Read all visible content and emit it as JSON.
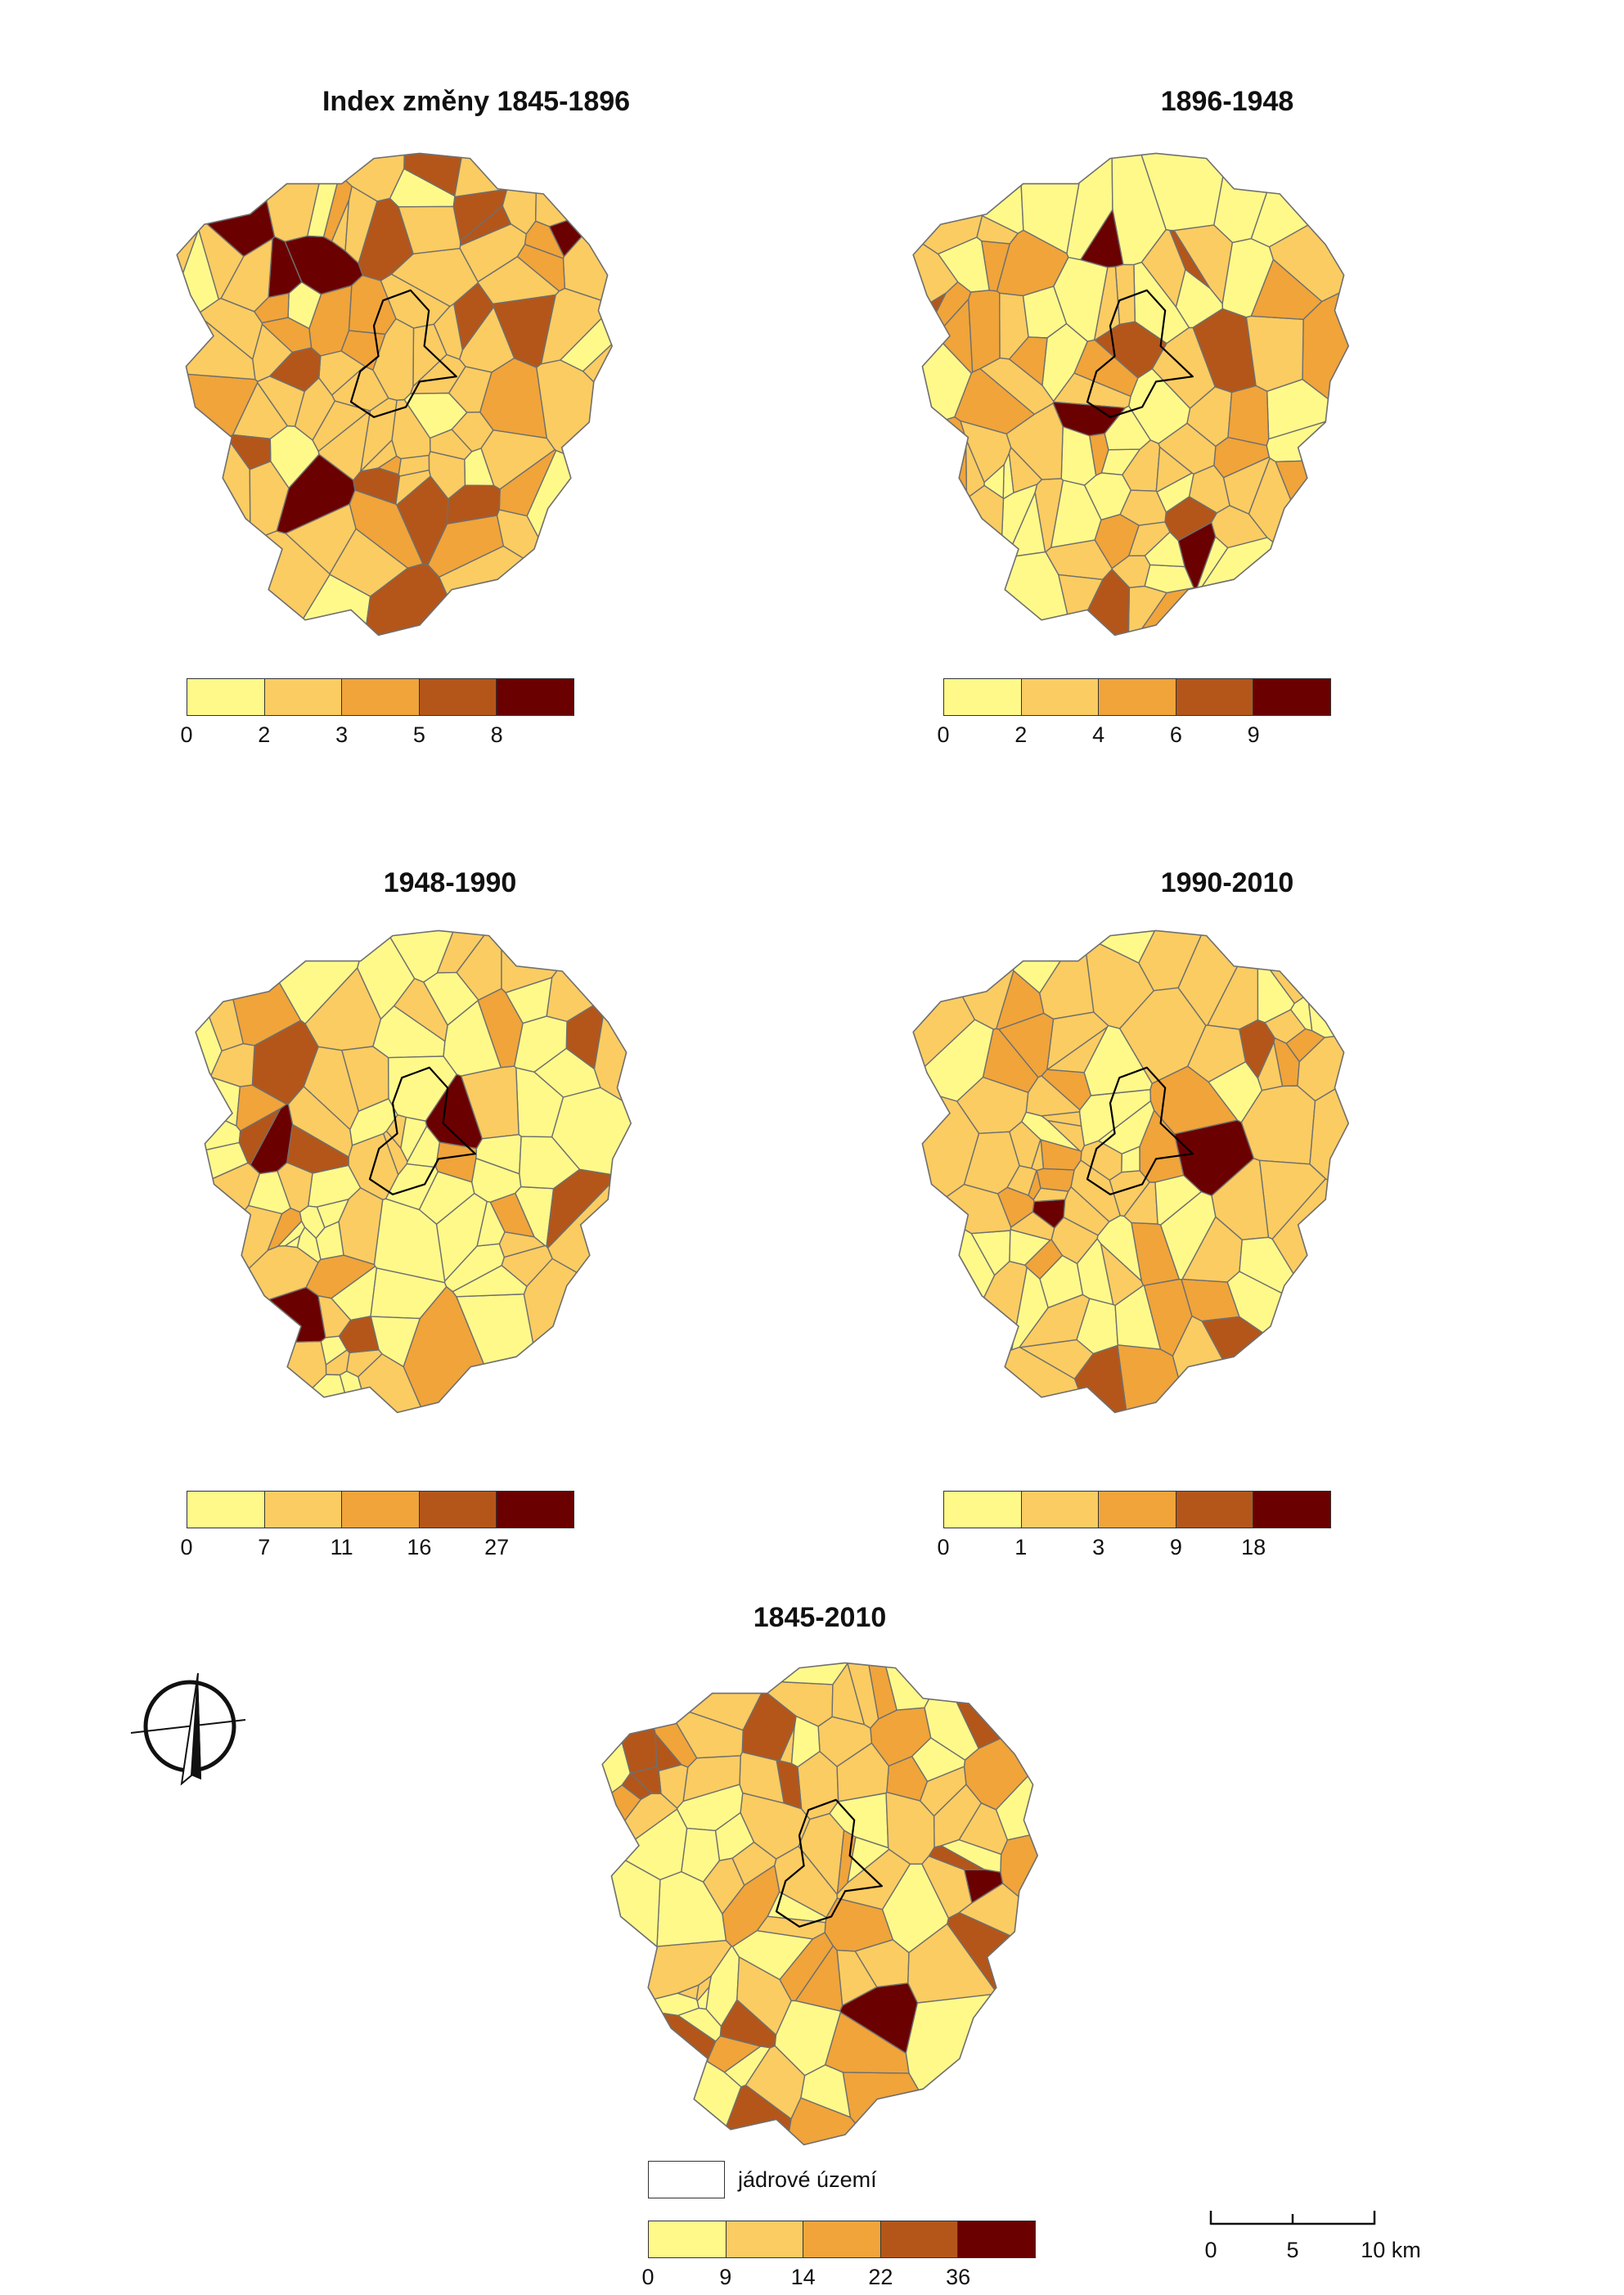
{
  "maps": [
    {
      "id": "m1",
      "title": "Index změny 1845-1896",
      "breaks": [
        "0",
        "2",
        "3",
        "5",
        "8"
      ],
      "colors": [
        "#fff98a",
        "#fbcc61",
        "#f0a43a",
        "#b4561a",
        "#6b0000"
      ],
      "class_counts": [
        10,
        50,
        14,
        12,
        5
      ],
      "seed": 11
    },
    {
      "id": "m2",
      "title": "1896-1948",
      "breaks": [
        "0",
        "2",
        "4",
        "6",
        "9"
      ],
      "colors": [
        "#fff98a",
        "#fbcc61",
        "#f0a43a",
        "#b4561a",
        "#6b0000"
      ],
      "class_counts": [
        33,
        33,
        17,
        6,
        3
      ],
      "seed": 23
    },
    {
      "id": "m3",
      "title": "1948-1990",
      "breaks": [
        "0",
        "7",
        "11",
        "16",
        "27"
      ],
      "colors": [
        "#fff98a",
        "#fbcc61",
        "#f0a43a",
        "#b4561a",
        "#6b0000"
      ],
      "class_counts": [
        45,
        30,
        8,
        7,
        3
      ],
      "seed": 37
    },
    {
      "id": "m4",
      "title": "1990-2010",
      "breaks": [
        "0",
        "1",
        "3",
        "9",
        "18"
      ],
      "colors": [
        "#fff98a",
        "#fbcc61",
        "#f0a43a",
        "#b4561a",
        "#6b0000"
      ],
      "class_counts": [
        25,
        45,
        17,
        3,
        2
      ],
      "seed": 41
    },
    {
      "id": "m5",
      "title": "1845-2010",
      "breaks": [
        "0",
        "9",
        "14",
        "22",
        "36"
      ],
      "colors": [
        "#fff98a",
        "#fbcc61",
        "#f0a43a",
        "#b4561a",
        "#6b0000"
      ],
      "class_counts": [
        30,
        35,
        18,
        12,
        2
      ],
      "seed": 53
    }
  ],
  "legend": {
    "core_label": "jádrové území"
  },
  "scalebar": {
    "labels": [
      "0",
      "5",
      "10 km"
    ]
  },
  "icons": {
    "north": "north-arrow-icon"
  }
}
